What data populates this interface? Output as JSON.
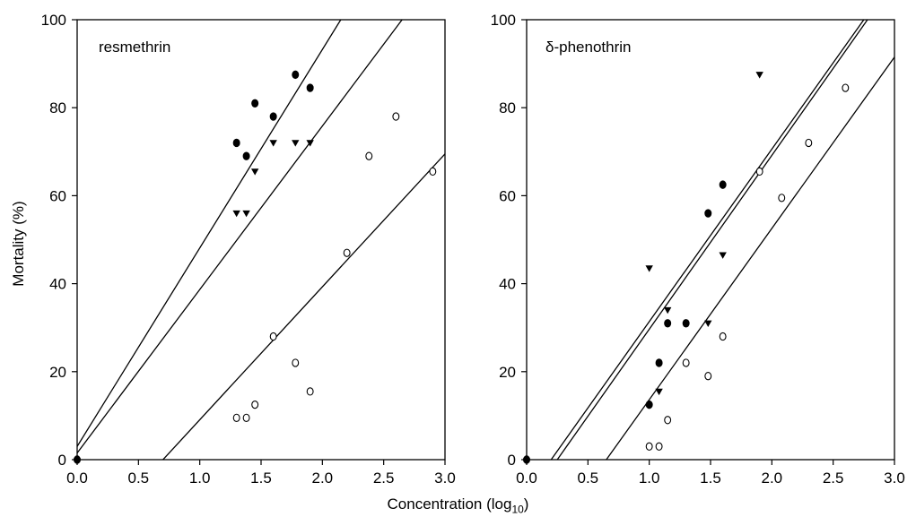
{
  "chart_data": [
    {
      "type": "scatter",
      "title": "resmethrin",
      "xlabel": "Concentration (log10)",
      "ylabel": "Mortality (%)",
      "xlim": [
        0.0,
        3.0
      ],
      "ylim": [
        0,
        100
      ],
      "xticks": [
        "0.0",
        "0.5",
        "1.0",
        "1.5",
        "2.0",
        "2.5",
        "3.0"
      ],
      "yticks": [
        "0",
        "20",
        "40",
        "60",
        "80",
        "100"
      ],
      "grid": false,
      "series": [
        {
          "marker": "filled-circle",
          "points": [
            [
              0.0,
              0
            ],
            [
              1.3,
              72
            ],
            [
              1.38,
              69
            ],
            [
              1.45,
              81
            ],
            [
              1.6,
              78
            ],
            [
              1.78,
              87.5
            ],
            [
              1.9,
              84.5
            ]
          ],
          "fit": [
            [
              0.0,
              3
            ],
            [
              2.15,
              100
            ]
          ]
        },
        {
          "marker": "filled-triangle-down",
          "points": [
            [
              1.3,
              56
            ],
            [
              1.38,
              56
            ],
            [
              1.45,
              65.5
            ],
            [
              1.6,
              72
            ],
            [
              1.78,
              72
            ],
            [
              1.9,
              72
            ]
          ],
          "fit": [
            [
              0.0,
              1.5
            ],
            [
              2.65,
              100
            ]
          ]
        },
        {
          "marker": "open-circle",
          "points": [
            [
              1.3,
              9.5
            ],
            [
              1.38,
              9.5
            ],
            [
              1.45,
              12.5
            ],
            [
              1.6,
              28
            ],
            [
              1.78,
              22
            ],
            [
              1.9,
              15.5
            ],
            [
              2.2,
              47
            ],
            [
              2.38,
              69
            ],
            [
              2.6,
              78
            ],
            [
              2.9,
              65.5
            ]
          ],
          "fit": [
            [
              0.7,
              0
            ],
            [
              3.0,
              69.5
            ]
          ]
        }
      ]
    },
    {
      "type": "scatter",
      "title": "δ-phenothrin",
      "xlabel": "Concentration (log10)",
      "ylabel": "",
      "xlim": [
        0.0,
        3.0
      ],
      "ylim": [
        0,
        100
      ],
      "xticks": [
        "0.0",
        "0.5",
        "1.0",
        "1.5",
        "2.0",
        "2.5",
        "3.0"
      ],
      "yticks": [
        "0",
        "20",
        "40",
        "60",
        "80",
        "100"
      ],
      "grid": false,
      "series": [
        {
          "marker": "filled-circle",
          "points": [
            [
              0.0,
              0
            ],
            [
              1.0,
              12.5
            ],
            [
              1.08,
              22
            ],
            [
              1.15,
              31
            ],
            [
              1.3,
              31
            ],
            [
              1.48,
              56
            ],
            [
              1.6,
              62.5
            ]
          ],
          "fit": [
            [
              0.2,
              0
            ],
            [
              2.75,
              100
            ]
          ]
        },
        {
          "marker": "filled-triangle-down",
          "points": [
            [
              1.0,
              43.5
            ],
            [
              1.08,
              15.5
            ],
            [
              1.15,
              34
            ],
            [
              1.48,
              31
            ],
            [
              1.6,
              46.5
            ],
            [
              1.9,
              87.5
            ]
          ],
          "fit": [
            [
              0.25,
              0
            ],
            [
              2.78,
              100
            ]
          ]
        },
        {
          "marker": "open-circle",
          "points": [
            [
              1.0,
              3
            ],
            [
              1.08,
              3
            ],
            [
              1.15,
              9
            ],
            [
              1.3,
              22
            ],
            [
              1.48,
              19
            ],
            [
              1.6,
              28
            ],
            [
              1.9,
              65.5
            ],
            [
              2.08,
              59.5
            ],
            [
              2.3,
              72
            ],
            [
              2.6,
              84.5
            ]
          ],
          "fit": [
            [
              0.65,
              0
            ],
            [
              3.0,
              91.5
            ]
          ]
        }
      ]
    }
  ]
}
